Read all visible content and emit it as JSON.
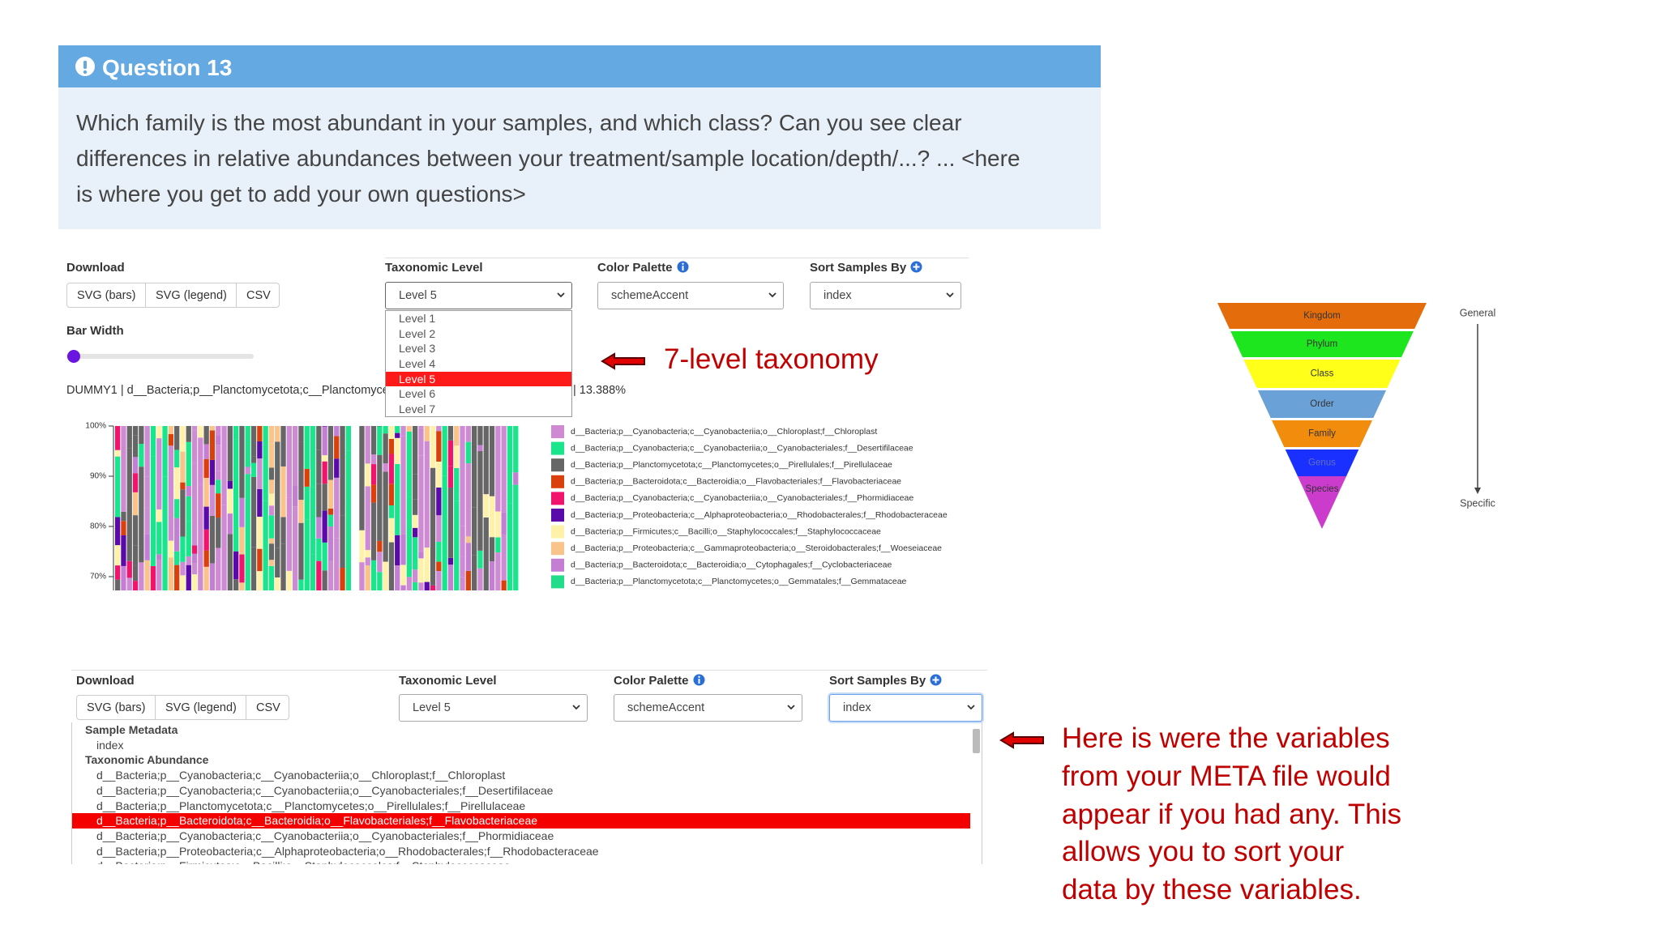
{
  "question": {
    "title": "Question 13",
    "lines": [
      "Which family is the most abundant in your samples, and which class? Can you see clear",
      "differences in relative abundances between your treatment/sample location/depth/...? ... <here",
      "is where you get to add your own questions>"
    ]
  },
  "panel1": {
    "download": {
      "label": "Download",
      "buttons": [
        "SVG (bars)",
        "SVG (legend)",
        "CSV"
      ]
    },
    "taxonomic_level": {
      "label": "Taxonomic Level",
      "value": "Level 5",
      "options": [
        "Level 1",
        "Level 2",
        "Level 3",
        "Level 4",
        "Level 5",
        "Level 6",
        "Level 7"
      ],
      "selected": 4
    },
    "color_palette": {
      "label": "Color Palette",
      "value": "schemeAccent"
    },
    "sort": {
      "label": "Sort Samples By",
      "value": "index"
    },
    "bar_width": {
      "label": "Bar Width"
    },
    "hover": "DUMMY1 | d__Bacteria;p__Planctomycetota;c__Planctomyce",
    "hover_value": "| 13.388%",
    "yticks": [
      "100%",
      "90%",
      "80%",
      "70%"
    ],
    "legend": [
      {
        "name": "d__Bacteria;p__Cyanobacteria;c__Cyanobacteriia;o__Chloroplast;f__Chloroplast",
        "color": "#cf8ad4"
      },
      {
        "name": "d__Bacteria;p__Cyanobacteria;c__Cyanobacteriia;o__Cyanobacteriales;f__Desertifilaceae",
        "color": "#19e68c"
      },
      {
        "name": "d__Bacteria;p__Planctomycetota;c__Planctomycetes;o__Pirellulales;f__Pirellulaceae",
        "color": "#666666"
      },
      {
        "name": "d__Bacteria;p__Bacteroidota;c__Bacteroidia;o__Flavobacteriales;f__Flavobacteriaceae",
        "color": "#d9400c"
      },
      {
        "name": "d__Bacteria;p__Cyanobacteria;c__Cyanobacteriia;o__Cyanobacteriales;f__Phormidiaceae",
        "color": "#f0146c"
      },
      {
        "name": "d__Bacteria;p__Proteobacteria;c__Alphaproteobacteria;o__Rhodobacterales;f__Rhodobacteraceae",
        "color": "#5a0aa8"
      },
      {
        "name": "d__Bacteria;p__Firmicutes;c__Bacilli;o__Staphylococcales;f__Staphylococcaceae",
        "color": "#fff2a8"
      },
      {
        "name": "d__Bacteria;p__Proteobacteria;c__Gammaproteobacteria;o__Steroidobacterales;f__Woeseiaceae",
        "color": "#f9c38a"
      },
      {
        "name": "d__Bacteria;p__Bacteroidota;c__Bacteroidia;o__Cytophagales;f__Cyclobacteriaceae",
        "color": "#c47fd4"
      },
      {
        "name": "d__Bacteria;p__Planctomycetota;c__Planctomycetes;o__Gemmatales;f__Gemmataceae",
        "color": "#21dc8a"
      }
    ]
  },
  "annotation1": "7-level taxonomy",
  "panel2": {
    "download": {
      "label": "Download",
      "buttons": [
        "SVG (bars)",
        "SVG (legend)",
        "CSV"
      ]
    },
    "taxonomic_level": {
      "label": "Taxonomic Level",
      "value": "Level 5"
    },
    "color_palette": {
      "label": "Color Palette",
      "value": "schemeAccent"
    },
    "sort": {
      "label": "Sort Samples By",
      "value": "index"
    },
    "groups": [
      {
        "label": "Sample Metadata",
        "items": [
          "index"
        ]
      },
      {
        "label": "Taxonomic Abundance",
        "items": [
          "d__Bacteria;p__Cyanobacteria;c__Cyanobacteriia;o__Chloroplast;f__Chloroplast",
          "d__Bacteria;p__Cyanobacteria;c__Cyanobacteriia;o__Cyanobacteriales;f__Desertifilaceae",
          "d__Bacteria;p__Planctomycetota;c__Planctomycetes;o__Pirellulales;f__Pirellulaceae",
          "d__Bacteria;p__Bacteroidota;c__Bacteroidia;o__Flavobacteriales;f__Flavobacteriaceae",
          "d__Bacteria;p__Cyanobacteria;c__Cyanobacteriia;o__Cyanobacteriales;f__Phormidiaceae",
          "d__Bacteria;p__Proteobacteria;c__Alphaproteobacteria;o__Rhodobacterales;f__Rhodobacteraceae",
          "d__Bacteria;p__Firmicutes;c__Bacilli;o__Staphylococcales;f__Staphylococcaceae"
        ],
        "selected": 3
      }
    ]
  },
  "annotation2": [
    "Here is were the variables",
    "from your META file would",
    "appear if you had any. This",
    "allows you to sort your",
    "data by these variables."
  ],
  "pyramid": {
    "levels": [
      {
        "label": "Kingdom",
        "color": "#e46c0a"
      },
      {
        "label": "Phylum",
        "color": "#1ee61e"
      },
      {
        "label": "Class",
        "color": "#ffff1a"
      },
      {
        "label": "Order",
        "color": "#6aa2d8"
      },
      {
        "label": "Family",
        "color": "#f28c0c"
      },
      {
        "label": "Genus",
        "color": "#1a30ff"
      },
      {
        "label": "Species",
        "color": "#cc3ccc"
      }
    ],
    "top": "General",
    "bottom": "Specific"
  }
}
